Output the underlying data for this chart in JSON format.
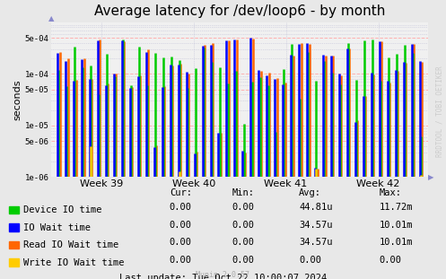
{
  "title": "Average latency for /dev/loop6 - by month",
  "ylabel": "seconds",
  "watermark": "RRDTOOL / TOBI OETIKER",
  "munin_version": "Munin 2.0.57",
  "last_update": "Last update: Tue Oct 22 10:00:07 2024",
  "yticks_log": [
    1e-06,
    5e-06,
    1e-05,
    5e-05,
    0.0001,
    0.0005
  ],
  "ytick_labels": [
    "1e-06",
    "5e-06",
    "1e-05",
    "5e-05",
    "1e-04",
    "5e-04"
  ],
  "week_labels": [
    "Week 39",
    "Week 40",
    "Week 41",
    "Week 42"
  ],
  "background_color": "#e8e8e8",
  "plot_background_color": "#f0f0f0",
  "grid_color_major": "#ffaaaa",
  "grid_color_minor": "#aaaacc",
  "colors": {
    "device_io": "#00cc00",
    "io_wait": "#0000ff",
    "read_io_wait": "#ff6600",
    "write_io_wait": "#ffcc00"
  },
  "legend_entries": [
    {
      "label": "Device IO time",
      "color": "#00cc00"
    },
    {
      "label": "IO Wait time",
      "color": "#0000ff"
    },
    {
      "label": "Read IO Wait time",
      "color": "#ff6600"
    },
    {
      "label": "Write IO Wait time",
      "color": "#ffcc00"
    }
  ],
  "table_headers": [
    "Cur:",
    "Min:",
    "Avg:",
    "Max:"
  ],
  "table_data": [
    [
      "0.00",
      "0.00",
      "44.81u",
      "11.72m"
    ],
    [
      "0.00",
      "0.00",
      "34.57u",
      "10.01m"
    ],
    [
      "0.00",
      "0.00",
      "34.57u",
      "10.01m"
    ],
    [
      "0.00",
      "0.00",
      "0.00",
      "0.00"
    ]
  ],
  "num_groups": 46,
  "seed": 42
}
